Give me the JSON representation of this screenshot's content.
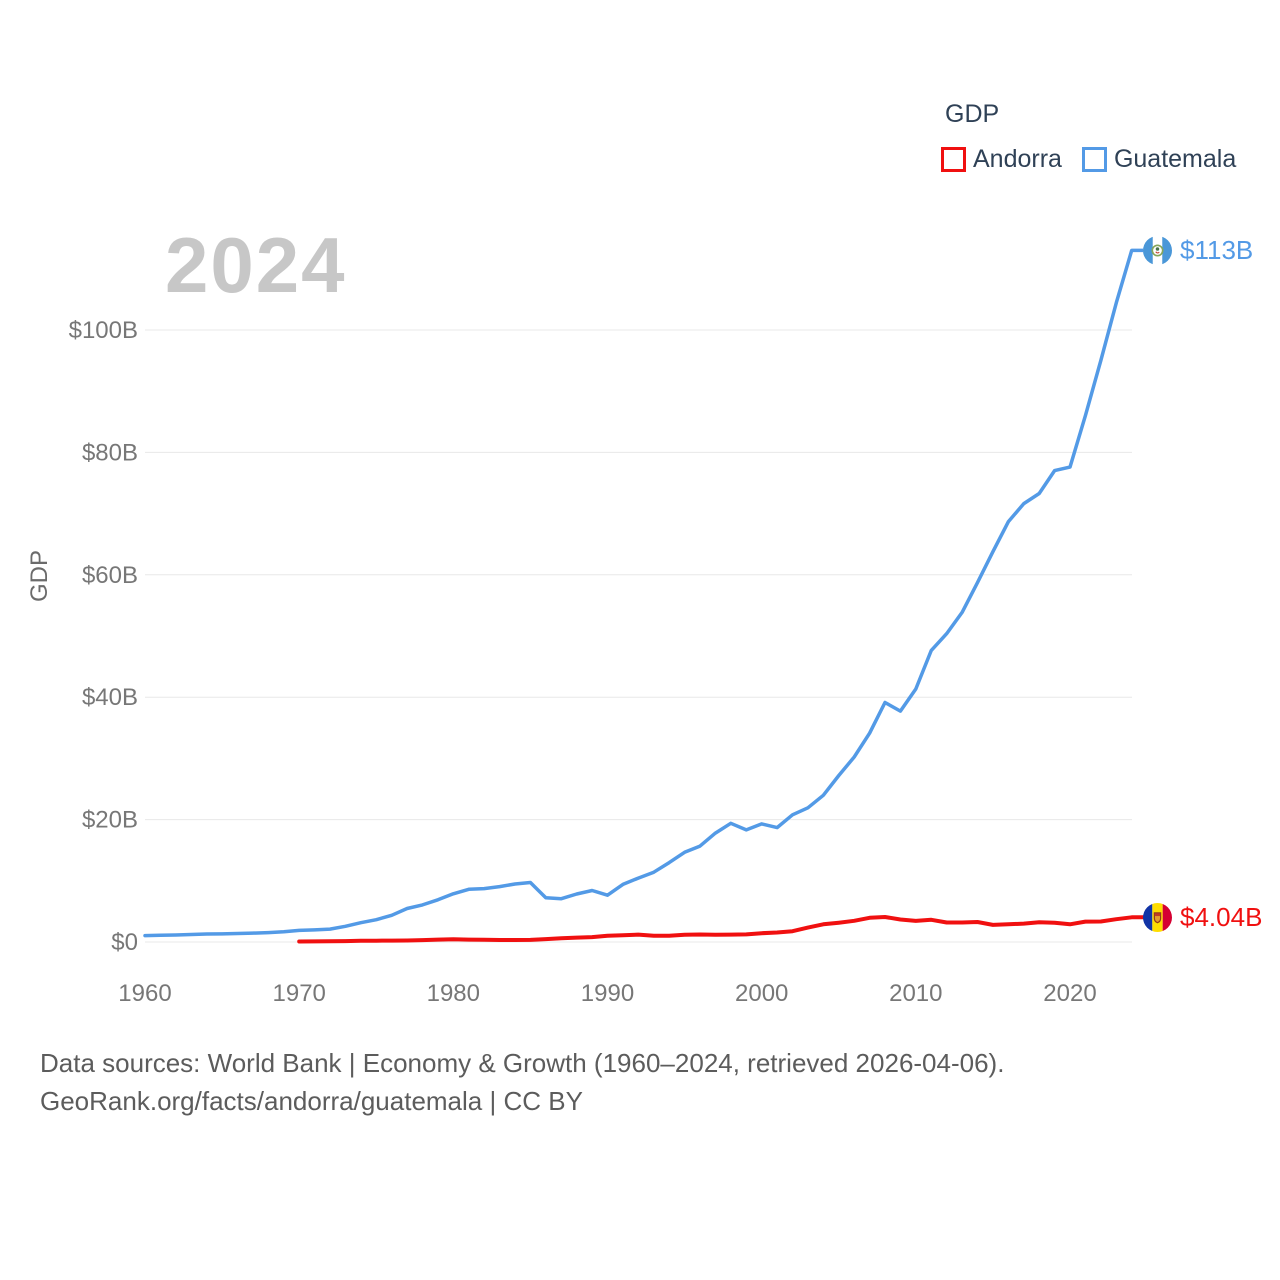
{
  "watermark": "2024",
  "legend": {
    "title": "GDP",
    "series": [
      {
        "label": "Andorra"
      },
      {
        "label": "Guatemala"
      }
    ]
  },
  "y_axis": {
    "title": "GDP"
  },
  "end_labels": {
    "guatemala": {
      "value": "$113B",
      "flag": "guatemala-flag"
    },
    "andorra": {
      "value": "$4.04B",
      "flag": "andorra-flag"
    }
  },
  "footer": {
    "line1": "Data sources: World Bank | Economy & Growth (1960–2024, retrieved 2026-04-06).",
    "line2": "GeoRank.org/facts/andorra/guatemala | CC BY"
  },
  "chart_data": {
    "type": "line",
    "title": "GDP",
    "ylabel": "GDP",
    "y_unit": "billions of current USD",
    "x_unit": "year",
    "xlim": [
      1960,
      2024
    ],
    "ylim": [
      0,
      115
    ],
    "grid": true,
    "legend_position": "top-right",
    "y_ticks": {
      "values": [
        0,
        20,
        40,
        60,
        80,
        100
      ],
      "labels": [
        "$0",
        "$20B",
        "$40B",
        "$60B",
        "$80B",
        "$100B"
      ]
    },
    "x_ticks": {
      "values": [
        1960,
        1970,
        1980,
        1990,
        2000,
        2010,
        2020
      ],
      "labels": [
        "1960",
        "1970",
        "1980",
        "1990",
        "2000",
        "2010",
        "2020"
      ]
    },
    "series": [
      {
        "name": "Andorra",
        "color": "#f01010",
        "x_start": 1970,
        "values": [
          0.08,
          0.09,
          0.11,
          0.15,
          0.19,
          0.22,
          0.23,
          0.25,
          0.31,
          0.4,
          0.45,
          0.39,
          0.38,
          0.33,
          0.33,
          0.34,
          0.48,
          0.61,
          0.72,
          0.8,
          1.03,
          1.11,
          1.21,
          1.01,
          1.02,
          1.18,
          1.22,
          1.18,
          1.21,
          1.24,
          1.43,
          1.55,
          1.76,
          2.36,
          2.89,
          3.16,
          3.46,
          3.95,
          4.09,
          3.67,
          3.45,
          3.63,
          3.19,
          3.19,
          3.27,
          2.79,
          2.9,
          3.0,
          3.22,
          3.15,
          2.89,
          3.33,
          3.35,
          3.73,
          4.04
        ]
      },
      {
        "name": "Guatemala",
        "color": "#539ae6",
        "x_start": 1960,
        "values": [
          1.04,
          1.09,
          1.14,
          1.22,
          1.3,
          1.33,
          1.39,
          1.45,
          1.53,
          1.66,
          1.9,
          1.98,
          2.1,
          2.57,
          3.16,
          3.65,
          4.37,
          5.48,
          6.07,
          6.9,
          7.88,
          8.61,
          8.72,
          9.05,
          9.47,
          9.72,
          7.23,
          7.08,
          7.84,
          8.41,
          7.65,
          9.41,
          10.44,
          11.4,
          12.98,
          14.66,
          15.67,
          17.79,
          19.4,
          18.32,
          19.29,
          18.7,
          20.78,
          21.92,
          23.97,
          27.21,
          30.23,
          34.11,
          39.14,
          37.73,
          41.34,
          47.65,
          50.39,
          53.85,
          58.72,
          63.77,
          68.66,
          71.64,
          73.28,
          77.02,
          77.6,
          86.01,
          95.0,
          104.45,
          113.0
        ]
      }
    ],
    "end_markers": [
      {
        "series": "Guatemala",
        "label": "$113B"
      },
      {
        "series": "Andorra",
        "label": "$4.04B"
      }
    ]
  }
}
